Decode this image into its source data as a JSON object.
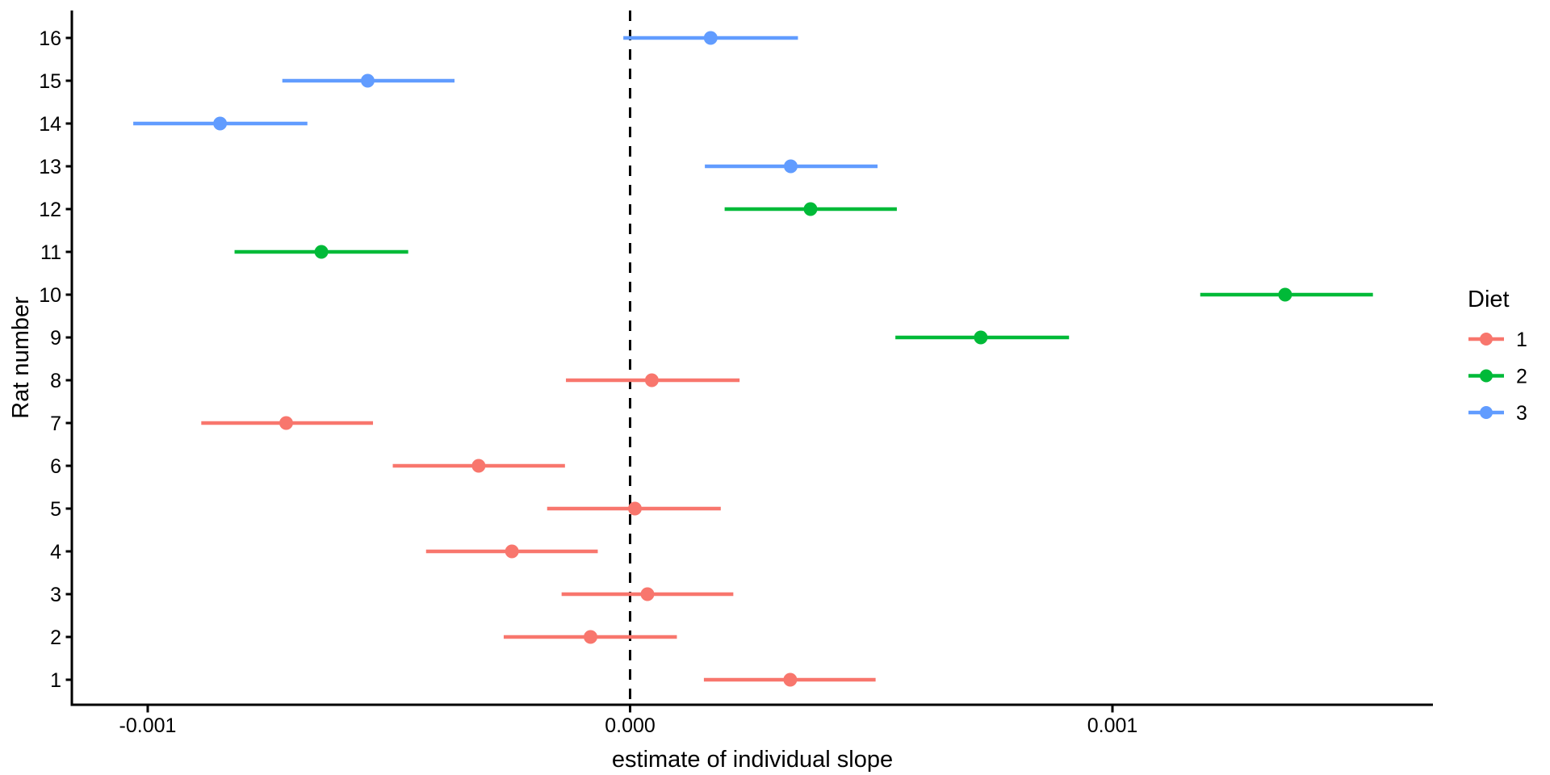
{
  "figure": {
    "background": "#ffffff",
    "text_color": "#000000"
  },
  "chart_data": {
    "type": "pointrange",
    "title": "",
    "xlabel": "estimate of individual slope",
    "ylabel": "Rat number",
    "grid": "off",
    "xlim": [
      -0.00116,
      0.00166
    ],
    "x_ticks": [
      {
        "value": -0.001,
        "label": "-0.001"
      },
      {
        "value": 0.0,
        "label": "0.000"
      },
      {
        "value": 0.001,
        "label": "0.001"
      }
    ],
    "y_ticks": [
      "1",
      "2",
      "3",
      "4",
      "5",
      "6",
      "7",
      "8",
      "9",
      "10",
      "11",
      "12",
      "13",
      "14",
      "15",
      "16"
    ],
    "reference_line": {
      "x": 0,
      "style": "dashed",
      "color": "#000000"
    },
    "legend": {
      "title": "Diet",
      "position": "right",
      "entries": [
        {
          "label": "1",
          "color": "#F8766D"
        },
        {
          "label": "2",
          "color": "#00BA38"
        },
        {
          "label": "3",
          "color": "#619CFF"
        }
      ]
    },
    "diet_colors": {
      "1": "#F8766D",
      "2": "#00BA38",
      "3": "#619CFF"
    },
    "points": [
      {
        "rat": 1,
        "diet": "1",
        "estimate": 0.000332,
        "lower": 0.000153,
        "upper": 0.000509
      },
      {
        "rat": 2,
        "diet": "1",
        "estimate": -8.2e-05,
        "lower": -0.000262,
        "upper": 9.7e-05
      },
      {
        "rat": 3,
        "diet": "1",
        "estimate": 3.6e-05,
        "lower": -0.000142,
        "upper": 0.000214
      },
      {
        "rat": 4,
        "diet": "1",
        "estimate": -0.000245,
        "lower": -0.000423,
        "upper": -6.7e-05
      },
      {
        "rat": 5,
        "diet": "1",
        "estimate": 1e-05,
        "lower": -0.000172,
        "upper": 0.000188
      },
      {
        "rat": 6,
        "diet": "1",
        "estimate": -0.000314,
        "lower": -0.000492,
        "upper": -0.000135
      },
      {
        "rat": 7,
        "diet": "1",
        "estimate": -0.000713,
        "lower": -0.000889,
        "upper": -0.000533
      },
      {
        "rat": 8,
        "diet": "1",
        "estimate": 4.5e-05,
        "lower": -0.000133,
        "upper": 0.000227
      },
      {
        "rat": 9,
        "diet": "2",
        "estimate": 0.000727,
        "lower": 0.00055,
        "upper": 0.00091
      },
      {
        "rat": 10,
        "diet": "2",
        "estimate": 0.001358,
        "lower": 0.001182,
        "upper": 0.00154
      },
      {
        "rat": 11,
        "diet": "2",
        "estimate": -0.00064,
        "lower": -0.00082,
        "upper": -0.00046
      },
      {
        "rat": 12,
        "diet": "2",
        "estimate": 0.000374,
        "lower": 0.000196,
        "upper": 0.000553
      },
      {
        "rat": 13,
        "diet": "3",
        "estimate": 0.000333,
        "lower": 0.000155,
        "upper": 0.000513
      },
      {
        "rat": 14,
        "diet": "3",
        "estimate": -0.00085,
        "lower": -0.00103,
        "upper": -0.000669
      },
      {
        "rat": 15,
        "diet": "3",
        "estimate": -0.000544,
        "lower": -0.000721,
        "upper": -0.000364
      },
      {
        "rat": 16,
        "diet": "3",
        "estimate": 0.000167,
        "lower": -1.4e-05,
        "upper": 0.000348
      }
    ]
  }
}
